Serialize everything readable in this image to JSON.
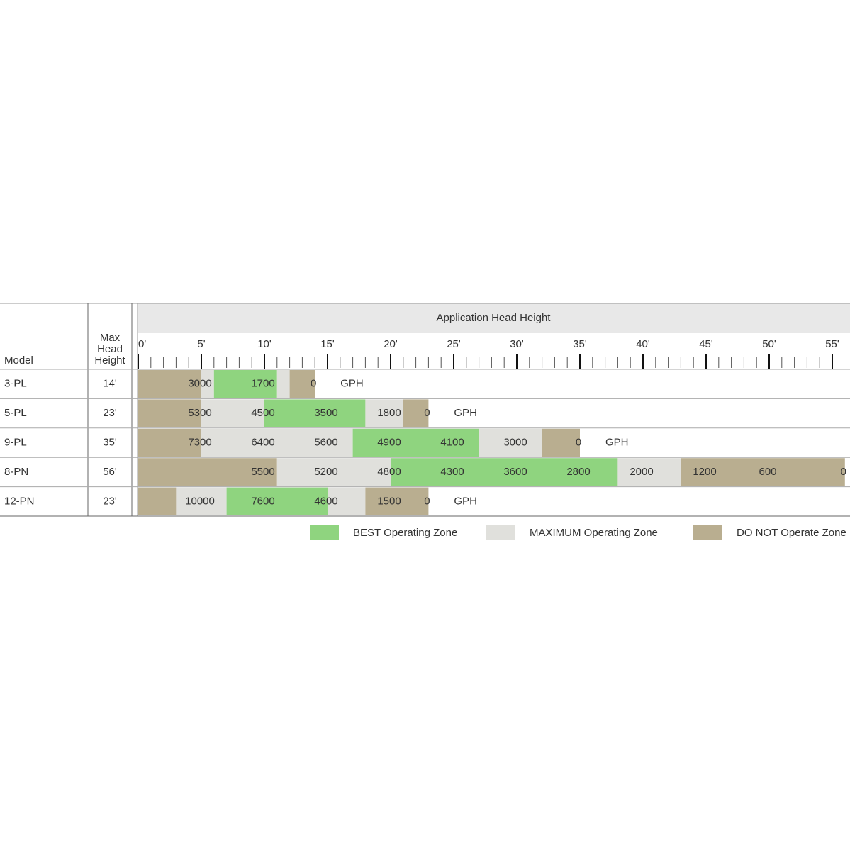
{
  "header": {
    "model": "Model",
    "max_head": [
      "Max",
      "Head",
      "Height"
    ]
  },
  "axis": {
    "title": "Application Head Height",
    "xlim": [
      0,
      55
    ],
    "minor_step": 1,
    "ticks": [
      {
        "value": 0,
        "label": "0'"
      },
      {
        "value": 5,
        "label": "5'"
      },
      {
        "value": 10,
        "label": "10'"
      },
      {
        "value": 15,
        "label": "15'"
      },
      {
        "value": 20,
        "label": "20'"
      },
      {
        "value": 25,
        "label": "25'"
      },
      {
        "value": 30,
        "label": "30'"
      },
      {
        "value": 35,
        "label": "35'"
      },
      {
        "value": 40,
        "label": "40'"
      },
      {
        "value": 45,
        "label": "45'"
      },
      {
        "value": 50,
        "label": "50'"
      },
      {
        "value": 55,
        "label": "55'"
      }
    ]
  },
  "legend": [
    {
      "label": "BEST Operating Zone",
      "color": "#8fd47f"
    },
    {
      "label": "MAXIMUM Operating Zone",
      "color": "#e0e0dc"
    },
    {
      "label": "DO NOT Operate Zone",
      "color": "#b9ae90"
    }
  ],
  "rows": [
    {
      "model": "3-PL",
      "max_head": "14'",
      "zones": [
        5,
        1,
        5,
        1,
        2
      ],
      "zone_colors": [
        "#b9ae90",
        "#e0e0dc",
        "#8fd47f",
        "#e0e0dc",
        "#b9ae90"
      ],
      "flow": {
        "at": [
          5,
          10,
          14
        ],
        "values": [
          3000,
          1700,
          0
        ]
      },
      "unit": "GPH"
    },
    {
      "model": "5-PL",
      "max_head": "23'",
      "zones": [
        5,
        5,
        8,
        3,
        2
      ],
      "zone_colors": [
        "#b9ae90",
        "#e0e0dc",
        "#8fd47f",
        "#e0e0dc",
        "#b9ae90"
      ],
      "flow": {
        "at": [
          5,
          10,
          15,
          20,
          23
        ],
        "values": [
          5300,
          4500,
          3500,
          1800,
          0
        ]
      },
      "unit": "GPH"
    },
    {
      "model": "9-PL",
      "max_head": "35'",
      "zones": [
        5,
        12,
        10,
        5,
        3
      ],
      "zone_colors": [
        "#b9ae90",
        "#e0e0dc",
        "#8fd47f",
        "#e0e0dc",
        "#b9ae90"
      ],
      "flow": {
        "at": [
          5,
          10,
          15,
          20,
          25,
          30,
          35
        ],
        "values": [
          7300,
          6400,
          5600,
          4900,
          4100,
          3000,
          0
        ]
      },
      "unit": "GPH"
    },
    {
      "model": "8-PN",
      "max_head": "56'",
      "zones": [
        11,
        9,
        18,
        5,
        13
      ],
      "zone_colors": [
        "#b9ae90",
        "#e0e0dc",
        "#8fd47f",
        "#e0e0dc",
        "#b9ae90"
      ],
      "flow": {
        "at": [
          10,
          15,
          20,
          25,
          30,
          35,
          40,
          45,
          50,
          56
        ],
        "values": [
          5500,
          5200,
          4800,
          4300,
          3600,
          2800,
          2000,
          1200,
          600,
          0
        ]
      }
    },
    {
      "model": "12-PN",
      "max_head": "23'",
      "zones": [
        3,
        4,
        8,
        3,
        5
      ],
      "zone_colors": [
        "#b9ae90",
        "#e0e0dc",
        "#8fd47f",
        "#e0e0dc",
        "#b9ae90"
      ],
      "flow": {
        "at": [
          5,
          10,
          15,
          20,
          23
        ],
        "values": [
          10000,
          7600,
          4600,
          1500,
          0
        ]
      },
      "unit": "GPH"
    }
  ]
}
